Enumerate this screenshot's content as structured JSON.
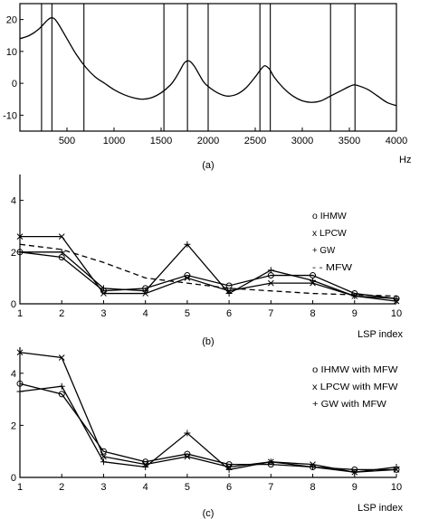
{
  "chart_data": [
    {
      "id": "a",
      "type": "line",
      "caption": "(a)",
      "xlabel": "Hz",
      "xlim": [
        0,
        4000
      ],
      "ylim": [
        -15,
        25
      ],
      "x_ticks": [
        500,
        1000,
        1500,
        2000,
        2500,
        3000,
        3500,
        4000
      ],
      "y_ticks": [
        -10,
        0,
        10,
        20
      ],
      "spectrum": {
        "x": [
          0,
          100,
          200,
          300,
          350,
          400,
          500,
          600,
          700,
          800,
          900,
          1000,
          1100,
          1200,
          1300,
          1400,
          1500,
          1600,
          1650,
          1700,
          1750,
          1800,
          1850,
          1900,
          1950,
          2000,
          2100,
          2200,
          2300,
          2400,
          2500,
          2550,
          2600,
          2650,
          2700,
          2800,
          2900,
          3000,
          3100,
          3200,
          3300,
          3400,
          3500,
          3550,
          3600,
          3700,
          3800,
          3900,
          4000
        ],
        "y": [
          14,
          15,
          17,
          20,
          20.5,
          19,
          14,
          9,
          5,
          2,
          0,
          -2,
          -3.5,
          -4.5,
          -5,
          -4.5,
          -3,
          -0.5,
          1.5,
          4,
          6.5,
          7,
          5.5,
          3,
          0.5,
          -1,
          -3,
          -4,
          -3.5,
          -1.5,
          2,
          4,
          5.5,
          4.5,
          2,
          -1.5,
          -4,
          -5.5,
          -6,
          -5.5,
          -4,
          -2.5,
          -1,
          -0.5,
          -0.8,
          -2,
          -4,
          -6,
          -7
        ]
      },
      "lsp_lines": [
        230,
        340,
        680,
        1530,
        1780,
        2000,
        2550,
        2660,
        3300,
        3560
      ]
    },
    {
      "id": "b",
      "type": "line",
      "caption": "(b)",
      "xlabel": "LSP index",
      "categories": [
        1,
        2,
        3,
        4,
        5,
        6,
        7,
        8,
        9,
        10
      ],
      "ylim": [
        0,
        5
      ],
      "y_ticks": [
        0,
        2,
        4
      ],
      "series": [
        {
          "name": "o IHMW",
          "marker": "o",
          "dash": "",
          "values": [
            2.0,
            1.8,
            0.5,
            0.6,
            1.1,
            0.7,
            1.1,
            1.1,
            0.4,
            0.2
          ]
        },
        {
          "name": "x LPCW",
          "marker": "x",
          "dash": "",
          "values": [
            2.6,
            2.6,
            0.4,
            0.4,
            1.0,
            0.5,
            0.8,
            0.8,
            0.3,
            0.1
          ]
        },
        {
          "name": "+ GW",
          "marker": "+",
          "dash": "",
          "values": [
            2.0,
            2.0,
            0.6,
            0.5,
            2.3,
            0.4,
            1.3,
            0.9,
            0.3,
            0.2
          ]
        },
        {
          "name": "- - MFW",
          "marker": "",
          "dash": "6,4",
          "values": [
            2.3,
            2.1,
            1.6,
            1.0,
            0.8,
            0.6,
            0.5,
            0.4,
            0.35,
            0.3
          ]
        }
      ]
    },
    {
      "id": "c",
      "type": "line",
      "caption": "(c)",
      "xlabel": "LSP index",
      "categories": [
        1,
        2,
        3,
        4,
        5,
        6,
        7,
        8,
        9,
        10
      ],
      "ylim": [
        0,
        5
      ],
      "y_ticks": [
        0,
        2,
        4
      ],
      "series": [
        {
          "name": "o IHMW with MFW",
          "marker": "o",
          "dash": "",
          "values": [
            3.6,
            3.2,
            1.0,
            0.6,
            0.9,
            0.5,
            0.5,
            0.4,
            0.3,
            0.3
          ]
        },
        {
          "name": "x LPCW with MFW",
          "marker": "x",
          "dash": "",
          "values": [
            4.8,
            4.6,
            0.8,
            0.5,
            0.8,
            0.4,
            0.6,
            0.5,
            0.2,
            0.3
          ]
        },
        {
          "name": "+ GW with MFW",
          "marker": "+",
          "dash": "",
          "values": [
            3.3,
            3.5,
            0.6,
            0.4,
            1.7,
            0.3,
            0.6,
            0.4,
            0.2,
            0.4
          ]
        }
      ]
    }
  ]
}
